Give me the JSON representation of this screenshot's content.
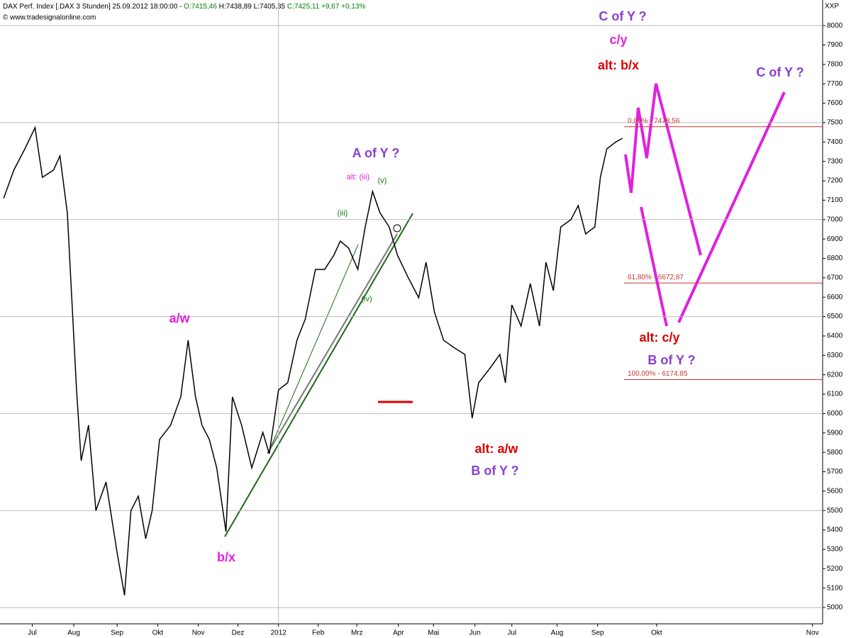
{
  "header": {
    "title": "DAX Perf. Index [.DAX 3 Stunden] 25.09.2012 18:00:00 -",
    "open": "O:7415,46",
    "high": "H:7438,89",
    "low": "L:7405,35",
    "close": "C:7425,11 +9,67 +0,13%",
    "copyright": "© www.tradesignalonline.com",
    "corner": "XXP"
  },
  "chart_data": {
    "type": "line",
    "series": [
      {
        "name": "DAX Perf. Index",
        "color": "#000000",
        "x": [
          0.4,
          1.5,
          2.7,
          3.8,
          4.6,
          5.8,
          6.5,
          7.3,
          7.7,
          8.3,
          8.8,
          9.6,
          10.4,
          11.5,
          12.7,
          13.5,
          14.2,
          15,
          15.8,
          16.5,
          17.3,
          18.5,
          19.6,
          20.4,
          21.2,
          21.9,
          22.7,
          23.5,
          24.5,
          25.2,
          26.2,
          27.3,
          28.5,
          29.2,
          30.2,
          31.2,
          32.2,
          33.1,
          34.2,
          35.2,
          36.2,
          36.9,
          37.8,
          38.8,
          39.6,
          40.4,
          41.2,
          42.2,
          43.1,
          44.2,
          45.4,
          46.2,
          47.1,
          48.1,
          49.2,
          50.4,
          51.2,
          51.9,
          53.1,
          54.2,
          54.8,
          55.5,
          56.5,
          57.5,
          58.5,
          59.2,
          60,
          60.8,
          61.9,
          62.7,
          63.5,
          64.5,
          65.1,
          65.8,
          66.8,
          67.5
        ],
        "values": [
          7110,
          7255,
          7365,
          7474,
          7218,
          7255,
          7328,
          7035,
          6670,
          6122,
          5757,
          5940,
          5500,
          5647,
          5282,
          5063,
          5500,
          5574,
          5355,
          5500,
          5866,
          5940,
          6086,
          6378,
          6086,
          5940,
          5866,
          5720,
          5391,
          6086,
          5940,
          5720,
          5903,
          5793,
          6122,
          6159,
          6378,
          6487,
          6743,
          6743,
          6816,
          6889,
          6853,
          6743,
          6962,
          7145,
          7035,
          6962,
          6816,
          6707,
          6597,
          6780,
          6524,
          6378,
          6341,
          6305,
          5976,
          6159,
          6232,
          6305,
          6159,
          6560,
          6451,
          6670,
          6451,
          6780,
          6634,
          6962,
          6999,
          7072,
          6926,
          6962,
          7218,
          7365,
          7401,
          7419
        ]
      }
    ],
    "xlim": [
      0,
      89.2
    ],
    "xticks": [
      {
        "value": 3.5,
        "label": "Jul"
      },
      {
        "value": 8,
        "label": "Aug"
      },
      {
        "value": 12.7,
        "label": "Sep"
      },
      {
        "value": 17.1,
        "label": "Okt"
      },
      {
        "value": 21.5,
        "label": "Nov"
      },
      {
        "value": 25.8,
        "label": "Dez"
      },
      {
        "value": 30.2,
        "label": "2012"
      },
      {
        "value": 34.5,
        "label": "Feb"
      },
      {
        "value": 38.7,
        "label": "Mrz"
      },
      {
        "value": 43.2,
        "label": "Apr"
      },
      {
        "value": 47,
        "label": "Mai"
      },
      {
        "value": 51.5,
        "label": "Jun"
      },
      {
        "value": 55.5,
        "label": "Jul"
      },
      {
        "value": 60.4,
        "label": "Aug"
      },
      {
        "value": 64.8,
        "label": "Sep"
      },
      {
        "value": 71.2,
        "label": "Okt"
      },
      {
        "value": 88.1,
        "label": "Nov"
      }
    ],
    "ylim": [
      4916,
      8132
    ],
    "yticks": [
      5000,
      5100,
      5200,
      5300,
      5400,
      5500,
      5600,
      5700,
      5800,
      5900,
      6000,
      6100,
      6200,
      6300,
      6400,
      6500,
      6600,
      6700,
      6800,
      6900,
      7000,
      7100,
      7200,
      7300,
      7400,
      7500,
      7600,
      7700,
      7800,
      7900,
      8000
    ],
    "grid": true,
    "levels": [
      {
        "value": 7478.56,
        "label": "0,00% - 7478,56"
      },
      {
        "value": 6672.87,
        "label": "61,80% - 6672,87"
      },
      {
        "value": 6174.85,
        "label": "100,00% - 6174,85"
      }
    ],
    "annotations": [
      {
        "text": "C of Y ?",
        "color": "#8a3fd0"
      },
      {
        "text": "c/y",
        "color": "#e020e0"
      },
      {
        "text": "alt: b/x",
        "color": "#dd0000"
      },
      {
        "text": "C of Y ?",
        "color": "#8a3fd0"
      },
      {
        "text": "A of Y ?",
        "color": "#8a3fd0"
      },
      {
        "text": "alt: (iii)",
        "color": "#e020e0"
      },
      {
        "text": "(v)",
        "color": "#1a7a1a"
      },
      {
        "text": "(iii)",
        "color": "#1a7a1a"
      },
      {
        "text": "(iv)",
        "color": "#1a7a1a"
      },
      {
        "text": "a/w",
        "color": "#e020e0"
      },
      {
        "text": "b/x",
        "color": "#e020e0"
      },
      {
        "text": "alt: a/w",
        "color": "#dd0000"
      },
      {
        "text": "B of Y ?",
        "color": "#8a3fd0"
      },
      {
        "text": "alt: c/y",
        "color": "#dd0000"
      },
      {
        "text": "B of Y ?",
        "color": "#8a3fd0"
      }
    ]
  }
}
